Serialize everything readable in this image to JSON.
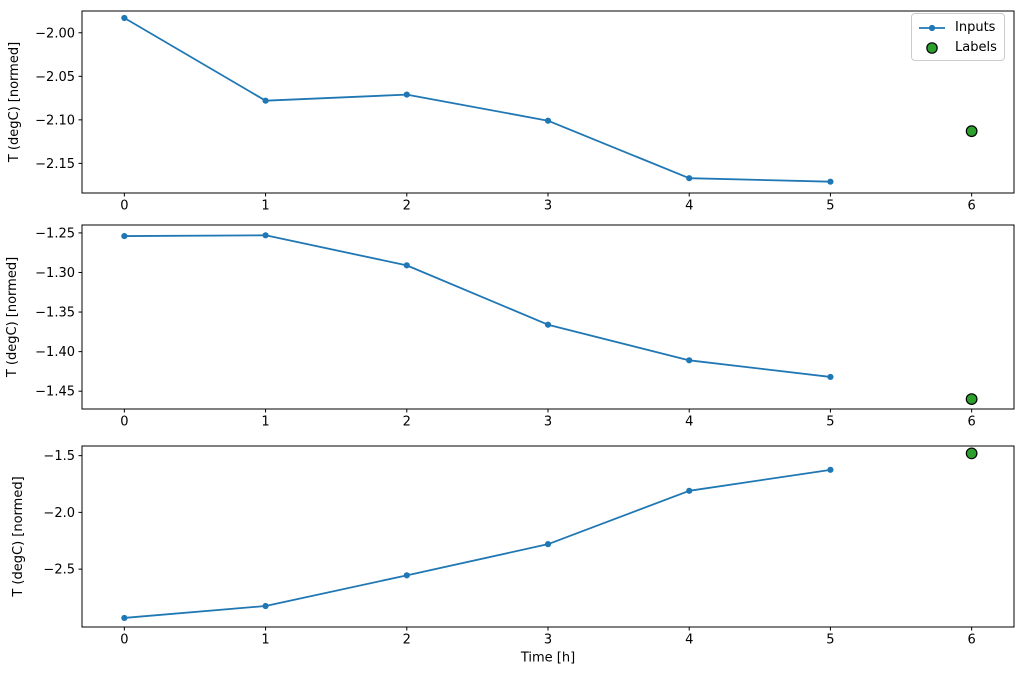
{
  "figure": {
    "background": "#ffffff",
    "text_color": "#000000",
    "spine_color": "#000000"
  },
  "legend": {
    "position": "upper right",
    "items": [
      {
        "label": "Inputs",
        "type": "line-with-marker",
        "color": "#1f77b4"
      },
      {
        "label": "Labels",
        "type": "filled-circle",
        "color": "#2ca02c",
        "edge_color": "#000000"
      }
    ]
  },
  "chart_data": [
    {
      "type": "line",
      "title": "",
      "xlabel": "",
      "ylabel": "T (degC) [normed]",
      "x": [
        0,
        1,
        2,
        3,
        4,
        5
      ],
      "series": [
        {
          "name": "Inputs",
          "color": "#1f77b4",
          "marker": "dot",
          "values": [
            -1.983,
            -2.078,
            -2.071,
            -2.101,
            -2.167,
            -2.171
          ]
        }
      ],
      "labels_point": {
        "name": "Labels",
        "x": 6,
        "value": -2.113,
        "color": "#2ca02c",
        "edge_color": "#000000"
      },
      "xlim": [
        -0.3,
        6.3
      ],
      "ylim": [
        -2.184,
        -1.975
      ],
      "xticks": [
        {
          "v": 0,
          "label": "0"
        },
        {
          "v": 1,
          "label": "1"
        },
        {
          "v": 2,
          "label": "2"
        },
        {
          "v": 3,
          "label": "3"
        },
        {
          "v": 4,
          "label": "4"
        },
        {
          "v": 5,
          "label": "5"
        },
        {
          "v": 6,
          "label": "6"
        }
      ],
      "yticks": [
        {
          "v": -2.0,
          "label": "−2.00"
        },
        {
          "v": -2.05,
          "label": "−2.05"
        },
        {
          "v": -2.1,
          "label": "−2.10"
        },
        {
          "v": -2.15,
          "label": "−2.15"
        }
      ],
      "grid": false,
      "show_legend": true
    },
    {
      "type": "line",
      "title": "",
      "xlabel": "",
      "ylabel": "T (degC) [normed]",
      "x": [
        0,
        1,
        2,
        3,
        4,
        5
      ],
      "series": [
        {
          "name": "Inputs",
          "color": "#1f77b4",
          "marker": "dot",
          "values": [
            -1.254,
            -1.253,
            -1.291,
            -1.366,
            -1.411,
            -1.432
          ]
        }
      ],
      "labels_point": {
        "name": "Labels",
        "x": 6,
        "value": -1.46,
        "color": "#2ca02c",
        "edge_color": "#000000"
      },
      "xlim": [
        -0.3,
        6.3
      ],
      "ylim": [
        -1.4725,
        -1.24
      ],
      "xticks": [
        {
          "v": 0,
          "label": "0"
        },
        {
          "v": 1,
          "label": "1"
        },
        {
          "v": 2,
          "label": "2"
        },
        {
          "v": 3,
          "label": "3"
        },
        {
          "v": 4,
          "label": "4"
        },
        {
          "v": 5,
          "label": "5"
        },
        {
          "v": 6,
          "label": "6"
        }
      ],
      "yticks": [
        {
          "v": -1.25,
          "label": "−1.25"
        },
        {
          "v": -1.3,
          "label": "−1.30"
        },
        {
          "v": -1.35,
          "label": "−1.35"
        },
        {
          "v": -1.4,
          "label": "−1.40"
        },
        {
          "v": -1.45,
          "label": "−1.45"
        }
      ],
      "grid": false,
      "show_legend": false
    },
    {
      "type": "line",
      "title": "",
      "xlabel": "Time [h]",
      "ylabel": "T (degC) [normed]",
      "x": [
        0,
        1,
        2,
        3,
        4,
        5
      ],
      "series": [
        {
          "name": "Inputs",
          "color": "#1f77b4",
          "marker": "dot",
          "values": [
            -2.93,
            -2.825,
            -2.555,
            -2.28,
            -1.81,
            -1.625
          ]
        }
      ],
      "labels_point": {
        "name": "Labels",
        "x": 6,
        "value": -1.48,
        "color": "#2ca02c",
        "edge_color": "#000000"
      },
      "xlim": [
        -0.3,
        6.3
      ],
      "ylim": [
        -3.01,
        -1.415
      ],
      "xticks": [
        {
          "v": 0,
          "label": "0"
        },
        {
          "v": 1,
          "label": "1"
        },
        {
          "v": 2,
          "label": "2"
        },
        {
          "v": 3,
          "label": "3"
        },
        {
          "v": 4,
          "label": "4"
        },
        {
          "v": 5,
          "label": "5"
        },
        {
          "v": 6,
          "label": "6"
        }
      ],
      "yticks": [
        {
          "v": -1.5,
          "label": "−1.5"
        },
        {
          "v": -2.0,
          "label": "−2.0"
        },
        {
          "v": -2.5,
          "label": "−2.5"
        }
      ],
      "grid": false,
      "show_legend": false
    }
  ]
}
